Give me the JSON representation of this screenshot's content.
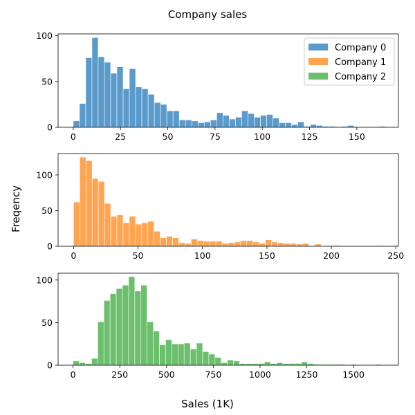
{
  "chart_data": {
    "type": "bar",
    "title": "Company sales",
    "xlabel": "Sales (1K)",
    "ylabel": "Freqency",
    "grid": false,
    "legend_placement": "top-right",
    "legend": [
      "Company 0",
      "Company 1",
      "Company 2"
    ],
    "subplots": [
      {
        "name": "Company 0",
        "color": "#5b9bcb",
        "xlim": [
          -8,
          172
        ],
        "ylim": [
          0,
          102
        ],
        "xticks": [
          0,
          25,
          50,
          75,
          100,
          125,
          150
        ],
        "yticks": [
          0,
          50,
          100
        ],
        "bin_start": 0,
        "bin_width": 3.3,
        "values": [
          7,
          26,
          76,
          98,
          77,
          71,
          59,
          66,
          42,
          64,
          44,
          42,
          36,
          27,
          25,
          18,
          18,
          8,
          8,
          7,
          5,
          6,
          8,
          16,
          13,
          9,
          11,
          18,
          15,
          11,
          13,
          14,
          10,
          5,
          5,
          3,
          6,
          1,
          3,
          2,
          1,
          1,
          0,
          1,
          2,
          0,
          0,
          0,
          0,
          1
        ]
      },
      {
        "name": "Company 1",
        "color": "#ffa552",
        "xlim": [
          -12,
          252
        ],
        "ylim": [
          0,
          130
        ],
        "xticks": [
          0,
          50,
          100,
          150,
          200,
          250
        ],
        "yticks": [
          0,
          50,
          100
        ],
        "bin_start": 0,
        "bin_width": 4.8,
        "values": [
          62,
          125,
          120,
          95,
          91,
          60,
          42,
          44,
          33,
          42,
          31,
          33,
          35,
          21,
          12,
          14,
          12,
          5,
          4,
          10,
          8,
          7,
          7,
          7,
          4,
          5,
          6,
          8,
          8,
          6,
          4,
          9,
          6,
          5,
          4,
          4,
          3,
          4,
          0,
          3,
          0,
          0,
          1,
          0,
          0,
          0,
          0,
          0,
          0,
          1
        ]
      },
      {
        "name": "Company 2",
        "color": "#6cbf6c",
        "xlim": [
          -80,
          1740
        ],
        "ylim": [
          0,
          108
        ],
        "xticks": [
          0,
          250,
          500,
          750,
          1000,
          1250,
          1500
        ],
        "yticks": [
          0,
          50,
          100
        ],
        "bin_start": 0,
        "bin_width": 33,
        "values": [
          5,
          3,
          2,
          8,
          51,
          76,
          84,
          90,
          94,
          104,
          87,
          94,
          51,
          40,
          24,
          30,
          25,
          25,
          26,
          19,
          26,
          16,
          13,
          9,
          3,
          6,
          5,
          2,
          2,
          2,
          2,
          4,
          2,
          3,
          2,
          2,
          2,
          4,
          2,
          1,
          1,
          1,
          1,
          1,
          0,
          1,
          0,
          0,
          0,
          1
        ]
      }
    ]
  }
}
